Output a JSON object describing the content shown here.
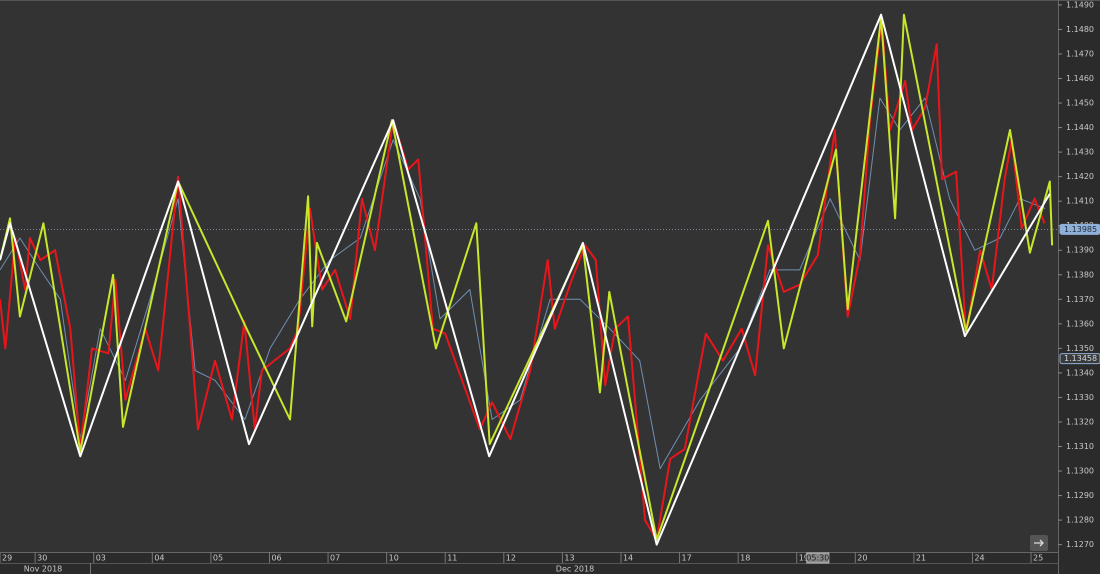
{
  "chart_data": {
    "type": "line",
    "xlim": [
      0.4,
      18.46
    ],
    "ylim": [
      1.1267,
      1.1492
    ],
    "xticks": [
      {
        "value": 0.4,
        "label": "29"
      },
      {
        "value": 1,
        "label": "30"
      },
      {
        "value": 2,
        "label": "03"
      },
      {
        "value": 3,
        "label": "04"
      },
      {
        "value": 4,
        "label": "05"
      },
      {
        "value": 5,
        "label": "06"
      },
      {
        "value": 6,
        "label": "07"
      },
      {
        "value": 7,
        "label": "10"
      },
      {
        "value": 8,
        "label": "11"
      },
      {
        "value": 9,
        "label": "12"
      },
      {
        "value": 10,
        "label": "13"
      },
      {
        "value": 11,
        "label": "14"
      },
      {
        "value": 12,
        "label": "17"
      },
      {
        "value": 13,
        "label": "18"
      },
      {
        "value": 14,
        "label": "19"
      },
      {
        "value": 15,
        "label": "20"
      },
      {
        "value": 16,
        "label": "21"
      },
      {
        "value": 17,
        "label": "24"
      },
      {
        "value": 18,
        "label": "25"
      }
    ],
    "yticks": [
      {
        "value": 1.127,
        "label": "1.1270"
      },
      {
        "value": 1.128,
        "label": "1.1280"
      },
      {
        "value": 1.129,
        "label": "1.1290"
      },
      {
        "value": 1.13,
        "label": "1.1300"
      },
      {
        "value": 1.131,
        "label": "1.1310"
      },
      {
        "value": 1.132,
        "label": "1.1320"
      },
      {
        "value": 1.133,
        "label": "1.1330"
      },
      {
        "value": 1.134,
        "label": "1.1340"
      },
      {
        "value": 1.135,
        "label": "1.1350"
      },
      {
        "value": 1.136,
        "label": "1.1360"
      },
      {
        "value": 1.137,
        "label": "1.1370"
      },
      {
        "value": 1.138,
        "label": "1.1380"
      },
      {
        "value": 1.139,
        "label": "1.1390"
      },
      {
        "value": 1.14,
        "label": "1.1400"
      },
      {
        "value": 1.141,
        "label": "1.1410"
      },
      {
        "value": 1.142,
        "label": "1.1420"
      },
      {
        "value": 1.143,
        "label": "1.1430"
      },
      {
        "value": 1.144,
        "label": "1.1440"
      },
      {
        "value": 1.145,
        "label": "1.1450"
      },
      {
        "value": 1.146,
        "label": "1.1460"
      },
      {
        "value": 1.147,
        "label": "1.1470"
      },
      {
        "value": 1.148,
        "label": "1.1480"
      },
      {
        "value": 1.149,
        "label": "1.1490"
      }
    ],
    "months": [
      "Nov 2018",
      "Dec 2018"
    ],
    "crosshair_time": {
      "x": 14.36,
      "label": "05:30"
    },
    "price_markers": [
      {
        "value": 1.13985,
        "label": "1.13985",
        "dotted": true
      },
      {
        "value": 1.13458,
        "label": "1.13458",
        "dotted": false
      }
    ],
    "series": [
      {
        "color": "#6f8fb3",
        "width": 1,
        "x": [
          0.4,
          0.74,
          1.09,
          1.43,
          1.77,
          2.11,
          2.54,
          2.96,
          3.44,
          3.73,
          4.07,
          4.58,
          5.01,
          5.52,
          6.03,
          6.55,
          7.11,
          7.57,
          7.91,
          8.42,
          8.8,
          9.28,
          9.79,
          10.3,
          10.81,
          11.32,
          11.67,
          12.35,
          13.03,
          13.54,
          14.05,
          14.57,
          15.08,
          15.42,
          15.76,
          16.19,
          16.61,
          17.04,
          17.47,
          17.81,
          18.24
        ],
        "values": [
          1.1382,
          1.1395,
          1.1382,
          1.137,
          1.1313,
          1.1358,
          1.1337,
          1.137,
          1.1411,
          1.1341,
          1.1337,
          1.1321,
          1.135,
          1.137,
          1.1386,
          1.1395,
          1.1435,
          1.1411,
          1.1362,
          1.1374,
          1.1321,
          1.1329,
          1.137,
          1.137,
          1.1358,
          1.1345,
          1.1301,
          1.1329,
          1.135,
          1.1382,
          1.1382,
          1.1411,
          1.1386,
          1.1452,
          1.1439,
          1.1452,
          1.1411,
          1.139,
          1.1395,
          1.1411,
          1.1407
        ]
      },
      {
        "color": "#e8161b",
        "width": 2,
        "x": [
          0.4,
          0.49,
          0.66,
          0.83,
          0.91,
          1.09,
          1.34,
          1.6,
          1.77,
          1.97,
          2.25,
          2.37,
          2.54,
          2.88,
          3.1,
          3.44,
          3.78,
          4.07,
          4.36,
          4.57,
          4.75,
          4.87,
          5.35,
          5.49,
          5.69,
          5.9,
          6.12,
          6.38,
          6.58,
          6.8,
          7.11,
          7.37,
          7.54,
          7.79,
          8.0,
          8.59,
          8.8,
          9.11,
          9.45,
          9.75,
          9.87,
          10.16,
          10.39,
          10.57,
          10.73,
          10.9,
          11.12,
          11.41,
          11.61,
          11.84,
          12.09,
          12.45,
          12.74,
          13.06,
          13.29,
          13.51,
          13.78,
          14.05,
          14.36,
          14.65,
          14.87,
          15.08,
          15.25,
          15.45,
          15.59,
          15.85,
          15.97,
          16.19,
          16.39,
          16.48,
          16.72,
          16.89,
          17.13,
          17.33,
          17.55,
          17.67,
          17.84,
          18.06,
          18.23
        ],
        "values": [
          1.137,
          1.135,
          1.1395,
          1.1374,
          1.1395,
          1.1386,
          1.139,
          1.1358,
          1.1309,
          1.135,
          1.1348,
          1.1378,
          1.1329,
          1.1358,
          1.1341,
          1.142,
          1.1317,
          1.1345,
          1.1321,
          1.1361,
          1.1317,
          1.1341,
          1.135,
          1.1358,
          1.1407,
          1.1374,
          1.1382,
          1.1362,
          1.1411,
          1.139,
          1.1443,
          1.1423,
          1.1427,
          1.1358,
          1.1356,
          1.1317,
          1.1328,
          1.1313,
          1.1341,
          1.1386,
          1.1358,
          1.1378,
          1.1392,
          1.1386,
          1.1335,
          1.1358,
          1.1363,
          1.128,
          1.1272,
          1.1305,
          1.1309,
          1.1356,
          1.1345,
          1.1358,
          1.1339,
          1.1392,
          1.1373,
          1.1376,
          1.1388,
          1.1439,
          1.1363,
          1.1388,
          1.1443,
          1.1484,
          1.1439,
          1.1459,
          1.1439,
          1.1448,
          1.1474,
          1.1419,
          1.1422,
          1.1356,
          1.139,
          1.1374,
          1.1419,
          1.1435,
          1.1399,
          1.1411,
          1.1401
        ]
      },
      {
        "color": "#c8e62a",
        "width": 2,
        "x": [
          0.4,
          0.57,
          0.74,
          1.14,
          1.77,
          2.33,
          2.5,
          3.44,
          4.57,
          5.35,
          5.66,
          5.73,
          5.81,
          6.31,
          7.09,
          7.84,
          8.53,
          8.76,
          10.35,
          10.64,
          10.8,
          11.61,
          13.51,
          13.78,
          14.67,
          14.87,
          15.44,
          15.68,
          15.83,
          16.89,
          17.64,
          17.98,
          18.32,
          18.36
        ],
        "values": [
          1.1386,
          1.1403,
          1.1363,
          1.1401,
          1.1308,
          1.138,
          1.1318,
          1.1418,
          1.136,
          1.1321,
          1.1412,
          1.1359,
          1.1393,
          1.1361,
          1.1443,
          1.135,
          1.1401,
          1.1311,
          1.1392,
          1.1332,
          1.1373,
          1.1272,
          1.1402,
          1.135,
          1.1431,
          1.1366,
          1.1485,
          1.1403,
          1.1486,
          1.1357,
          1.1439,
          1.1389,
          1.1418,
          1.1392
        ]
      },
      {
        "color": "#ffffff",
        "width": 2,
        "x": [
          0.4,
          0.57,
          1.77,
          3.44,
          4.65,
          7.11,
          8.75,
          10.35,
          11.61,
          15.44,
          16.87,
          18.32
        ],
        "values": [
          1.1386,
          1.1401,
          1.1306,
          1.1418,
          1.1311,
          1.1443,
          1.1306,
          1.1393,
          1.127,
          1.1486,
          1.1355,
          1.1413
        ]
      }
    ]
  }
}
